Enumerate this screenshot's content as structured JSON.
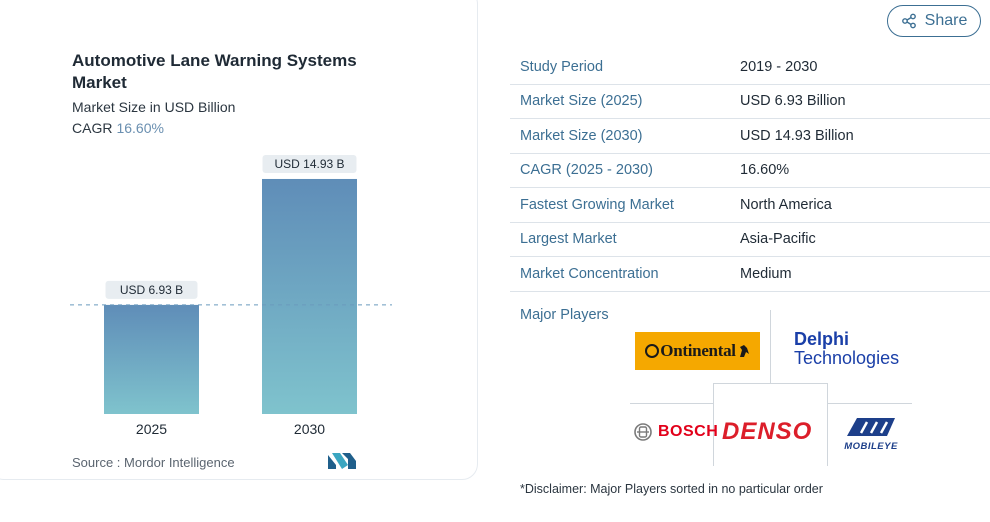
{
  "chart": {
    "title": "Automotive Lane Warning Systems Market",
    "subtitle": "Market Size in USD Billion",
    "cagr_label": "CAGR",
    "cagr_value": "16.60%",
    "source": "Source :  Mordor Intelligence"
  },
  "chart_data": {
    "type": "bar",
    "title": "Automotive Lane Warning Systems Market",
    "subtitle": "Market Size in USD Billion",
    "categories": [
      "2025",
      "2030"
    ],
    "values": [
      6.93,
      14.93
    ],
    "data_labels": [
      "USD 6.93 B",
      "USD 14.93 B"
    ],
    "ylim": [
      0,
      15.5
    ],
    "xlabel": "",
    "ylabel": "",
    "grid": false,
    "colors": {
      "bar_top": "#5f8db8",
      "bar_bottom": "#7fc3cd",
      "label_bg": "#e8edf1",
      "ref_line": "#6a9bbd"
    }
  },
  "share": {
    "label": "Share",
    "icon": "share-icon"
  },
  "table": [
    {
      "key": "Study Period",
      "value": "2019 - 2030"
    },
    {
      "key": "Market Size (2025)",
      "value": "USD 6.93 Billion"
    },
    {
      "key": "Market Size (2030)",
      "value": "USD 14.93 Billion"
    },
    {
      "key": "CAGR (2025 - 2030)",
      "value": "16.60%"
    },
    {
      "key": "Fastest Growing Market",
      "value": "North America"
    },
    {
      "key": "Largest Market",
      "value": "Asia-Pacific"
    },
    {
      "key": "Market Concentration",
      "value": "Medium"
    }
  ],
  "major_players_label": "Major Players",
  "players": {
    "continental": "Ontinental",
    "delphi_1": "Delphi",
    "delphi_2": "Technologies",
    "bosch": "BOSCH",
    "denso": "DENSO",
    "mobileye": "MOBILEYE"
  },
  "disclaimer": "*Disclaimer: Major Players sorted in no particular order",
  "theme": {
    "accent": "#3c6f93",
    "continental_yellow": "#f5a800",
    "denso_red": "#dc1e2a",
    "delphi_blue": "#1a3fa8",
    "bosch_red": "#e2001a"
  }
}
